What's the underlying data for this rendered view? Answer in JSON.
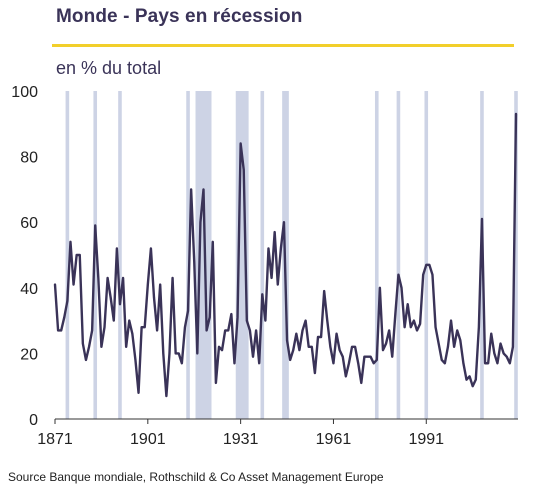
{
  "title": "Monde - Pays en récession",
  "subtitle": "en % du total",
  "source": "Source Banque mondiale, Rothschild & Co Asset Management Europe",
  "colors": {
    "line": "#3a3358",
    "band": "#cdd3e5",
    "accent": "#f2cf2a",
    "axis": "#333333"
  },
  "chart_data": {
    "type": "line",
    "title": "Monde - Pays en récession",
    "ylabel": "en % du total",
    "xlabel": "",
    "xlim": [
      1871,
      2020
    ],
    "ylim": [
      0,
      100
    ],
    "x_ticks": [
      "1871",
      "1901",
      "1931",
      "1961",
      "1991"
    ],
    "y_ticks": [
      "0",
      "20",
      "40",
      "60",
      "80",
      "100"
    ],
    "grid": false,
    "recession_bands": [
      [
        1875,
        1875
      ],
      [
        1884,
        1884
      ],
      [
        1892,
        1892
      ],
      [
        1914,
        1914
      ],
      [
        1917,
        1921
      ],
      [
        1930,
        1933
      ],
      [
        1938,
        1938
      ],
      [
        1945,
        1946
      ],
      [
        1975,
        1975
      ],
      [
        1982,
        1982
      ],
      [
        1991,
        1991
      ],
      [
        2009,
        2009
      ],
      [
        2020,
        2020
      ]
    ],
    "series": [
      {
        "x": [
          1871,
          1872,
          1873,
          1874,
          1875,
          1876,
          1877,
          1878,
          1879,
          1880,
          1881,
          1882,
          1883,
          1884,
          1885,
          1886,
          1887,
          1888,
          1889,
          1890,
          1891,
          1892,
          1893,
          1894,
          1895,
          1896,
          1897,
          1898,
          1899,
          1900,
          1901,
          1902,
          1903,
          1904,
          1905,
          1906,
          1907,
          1908,
          1909,
          1910,
          1911,
          1912,
          1913,
          1914,
          1915,
          1916,
          1917,
          1918,
          1919,
          1920,
          1921,
          1922,
          1923,
          1924,
          1925,
          1926,
          1927,
          1928,
          1929,
          1930,
          1931,
          1932,
          1933,
          1934,
          1935,
          1936,
          1937,
          1938,
          1939,
          1940,
          1941,
          1942,
          1943,
          1944,
          1945,
          1946,
          1947,
          1948,
          1949,
          1950,
          1951,
          1952,
          1953,
          1954,
          1955,
          1956,
          1957,
          1958,
          1959,
          1960,
          1961,
          1962,
          1963,
          1964,
          1965,
          1966,
          1967,
          1968,
          1969,
          1970,
          1971,
          1972,
          1973,
          1974,
          1975,
          1976,
          1977,
          1978,
          1979,
          1980,
          1981,
          1982,
          1983,
          1984,
          1985,
          1986,
          1987,
          1988,
          1989,
          1990,
          1991,
          1992,
          1993,
          1994,
          1995,
          1996,
          1997,
          1998,
          1999,
          2000,
          2001,
          2002,
          2003,
          2004,
          2005,
          2006,
          2007,
          2008,
          2009,
          2010,
          2011,
          2012,
          2013,
          2014,
          2015,
          2016,
          2017,
          2018,
          2019,
          2020
        ],
        "values": [
          41,
          27,
          27,
          31,
          36,
          54,
          41,
          50,
          50,
          23,
          18,
          22,
          27,
          59,
          43,
          22,
          28,
          43,
          37,
          30,
          52,
          35,
          43,
          22,
          30,
          26,
          18,
          8,
          28,
          28,
          41,
          52,
          37,
          27,
          41,
          20,
          7,
          20,
          43,
          20,
          20,
          17,
          28,
          33,
          70,
          48,
          20,
          60,
          70,
          27,
          31,
          54,
          11,
          22,
          21,
          27,
          27,
          32,
          17,
          31,
          84,
          76,
          30,
          27,
          19,
          27,
          17,
          38,
          30,
          52,
          43,
          57,
          41,
          52,
          60,
          24,
          18,
          21,
          26,
          21,
          27,
          30,
          22,
          22,
          14,
          25,
          25,
          39,
          30,
          22,
          17,
          26,
          21,
          19,
          13,
          17,
          22,
          22,
          17,
          11,
          19,
          19,
          19,
          17,
          18,
          40,
          21,
          23,
          27,
          19,
          32,
          44,
          40,
          28,
          35,
          28,
          30,
          27,
          29,
          44,
          47,
          47,
          44,
          28,
          23,
          18,
          17,
          22,
          30,
          22,
          27,
          24,
          17,
          12,
          13,
          10,
          12,
          28,
          61,
          17,
          17,
          26,
          20,
          17,
          23,
          20,
          19,
          17,
          22,
          93
        ]
      }
    ]
  }
}
